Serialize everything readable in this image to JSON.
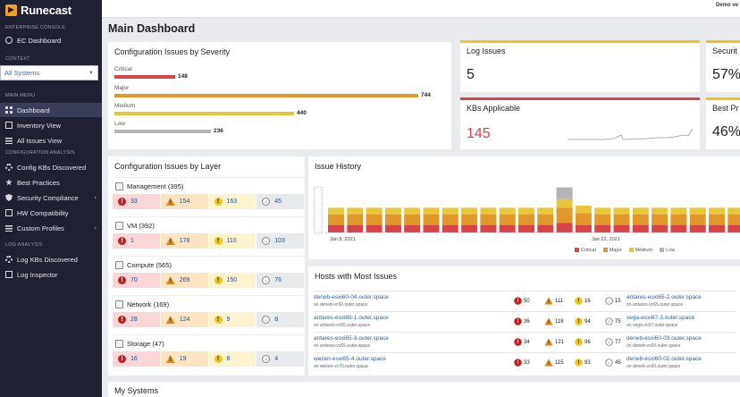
{
  "brand": {
    "name": "Runecast"
  },
  "topbar": {
    "user_text": "Demo ve"
  },
  "sidebar": {
    "enterprise_label": "ENTERPRISE CONSOLE",
    "ec_dashboard": "EC Dashboard",
    "context_label": "CONTEXT",
    "context_value": "All Systems",
    "main_menu_label": "MAIN MENU",
    "main_items": [
      "Dashboard",
      "Inventory View",
      "All Issues View"
    ],
    "config_label": "CONFIGURATION ANALYSIS",
    "config_items": [
      "Config KBs Discovered",
      "Best Practices",
      "Security Compliance",
      "HW Compatibility",
      "Custom Profiles"
    ],
    "log_label": "LOG ANALYSIS",
    "log_items": [
      "Log KBs Discovered",
      "Log Inspector"
    ]
  },
  "page": {
    "title": "Main Dashboard"
  },
  "severity": {
    "title": "Configuration Issues by Severity",
    "rows": [
      {
        "label": "Critical",
        "value": "148",
        "count": 148,
        "color": "#d9434a"
      },
      {
        "label": "Major",
        "value": "744",
        "count": 744,
        "color": "#e0982a"
      },
      {
        "label": "Medium",
        "value": "440",
        "count": 440,
        "color": "#e8c53a"
      },
      {
        "label": "Low",
        "value": "236",
        "count": 236,
        "color": "#b4b4b4"
      }
    ]
  },
  "kpis": {
    "log_issues": {
      "title": "Log Issues",
      "value": "5",
      "color": "#f0c419"
    },
    "kbs_applicable": {
      "title": "KBs Applicable",
      "value": "145",
      "color": "#d9434a"
    },
    "security": {
      "title": "Securit",
      "value": "57%",
      "color": "#f0c419"
    },
    "best_practices": {
      "title": "Best Pr",
      "value": "46%",
      "color": "#f0c419"
    }
  },
  "layers": {
    "title": "Configuration Issues by Layer",
    "items": [
      {
        "name": "Management (395)",
        "crit": "33",
        "maj": "154",
        "med": "163",
        "low": "45"
      },
      {
        "name": "VM (392)",
        "crit": "1",
        "maj": "178",
        "med": "110",
        "low": "103"
      },
      {
        "name": "Compute (565)",
        "crit": "70",
        "maj": "269",
        "med": "150",
        "low": "76"
      },
      {
        "name": "Network (169)",
        "crit": "28",
        "maj": "124",
        "med": "9",
        "low": "8"
      },
      {
        "name": "Storage (47)",
        "crit": "16",
        "maj": "19",
        "med": "8",
        "low": "4"
      }
    ]
  },
  "history": {
    "title": "Issue History",
    "date_start": "Jan 8, 2021",
    "date_mid": "Jan 22, 2021",
    "legend": [
      "Critical",
      "Major",
      "Medium",
      "Low"
    ]
  },
  "chart_data": {
    "type": "bar",
    "stacked": true,
    "categories": [
      "1",
      "2",
      "3",
      "4",
      "5",
      "6",
      "7",
      "8",
      "9",
      "10",
      "11",
      "12",
      "13",
      "14",
      "15",
      "16",
      "17",
      "18",
      "19",
      "20",
      "21",
      "22"
    ],
    "series": [
      {
        "name": "Critical",
        "color": "#d9434a",
        "values": [
          7,
          7,
          7,
          7,
          7,
          7,
          7,
          7,
          7,
          7,
          7,
          7,
          9,
          7,
          7,
          7,
          7,
          7,
          7,
          7,
          7,
          7
        ]
      },
      {
        "name": "Major",
        "color": "#e0982a",
        "values": [
          10,
          10,
          10,
          10,
          10,
          10,
          10,
          10,
          10,
          10,
          10,
          10,
          14,
          11,
          10,
          10,
          10,
          10,
          10,
          10,
          10,
          10
        ]
      },
      {
        "name": "Medium",
        "color": "#e8c53a",
        "values": [
          6,
          6,
          6,
          6,
          6,
          6,
          6,
          6,
          6,
          6,
          6,
          6,
          8,
          7,
          6,
          6,
          6,
          6,
          6,
          6,
          6,
          6
        ]
      },
      {
        "name": "Low",
        "color": "#b4b4b4",
        "values": [
          0,
          0,
          0,
          0,
          0,
          0,
          0,
          0,
          0,
          0,
          0,
          0,
          11,
          0,
          0,
          0,
          0,
          0,
          0,
          0,
          0,
          0
        ]
      }
    ],
    "xlabel": "",
    "ylabel": ""
  },
  "hosts": {
    "title": "Hosts with Most Issues",
    "rows": [
      {
        "name": "deneb-esxi60-04.outer.space",
        "sub": "on deneb-vc60.outer.space",
        "crit": "50",
        "maj": "111",
        "med": "16",
        "low": "15",
        "name2": "antares-esxi65-2.outer.space",
        "sub2": "on antares-vc65.outer.space"
      },
      {
        "name": "antares-esxi65-1.outer.space",
        "sub": "on antares-vc65.outer.space",
        "crit": "36",
        "maj": "118",
        "med": "94",
        "low": "75",
        "name2": "vega-esxi67-3.outer.space",
        "sub2": "on vega-vc67.outer.space"
      },
      {
        "name": "antares-esxi65-3.outer.space",
        "sub": "on antares-vc65.outer.space",
        "crit": "34",
        "maj": "121",
        "med": "96",
        "low": "77",
        "name2": "deneb-esxi60-03.outer.space",
        "sub2": "on deneb-vc60.outer.space"
      },
      {
        "name": "wezen-esxi65-4.outer.space",
        "sub": "on wezen-vc70.outer.space",
        "crit": "33",
        "maj": "115",
        "med": "93",
        "low": "45",
        "name2": "deneb-esxi60-02.outer.space",
        "sub2": "on deneb-vc60.outer.space"
      }
    ]
  },
  "systems": {
    "title": "My Systems"
  }
}
